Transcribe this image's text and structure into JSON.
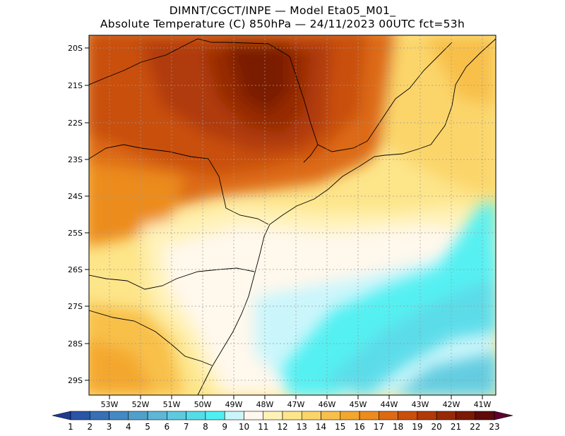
{
  "title": {
    "line1": "DIMNT/CGCT/INPE —  Model Eta05_M01_",
    "line2": "Absolute Temperature (C) 850hPa —  24/11/2023 00UTC fct=53h"
  },
  "map": {
    "lat_labels": [
      "20S",
      "21S",
      "22S",
      "23S",
      "24S",
      "25S",
      "26S",
      "27S",
      "28S",
      "29S"
    ],
    "lon_labels": [
      "53W",
      "52W",
      "51W",
      "50W",
      "49W",
      "48W",
      "47W",
      "46W",
      "45W",
      "44W",
      "43W",
      "42W",
      "41W"
    ]
  },
  "colorbar": {
    "labels": [
      "1",
      "2",
      "3",
      "4",
      "5",
      "6",
      "7",
      "8",
      "9",
      "10",
      "11",
      "12",
      "13",
      "14",
      "15",
      "16",
      "17",
      "18",
      "19",
      "20",
      "21",
      "22",
      "23"
    ],
    "colors": [
      "#1f3a93",
      "#2a55a5",
      "#3770b5",
      "#4489c2",
      "#51a0cc",
      "#5fb6d6",
      "#5dcadf",
      "#56dbe8",
      "#4ff0f2",
      "#caf6fb",
      "#fff8ec",
      "#fff2b8",
      "#fde58a",
      "#fbd56a",
      "#f8c04a",
      "#f4a72f",
      "#ec8c1e",
      "#dd6a12",
      "#c94f0c",
      "#b03a08",
      "#962a05",
      "#7a1a04",
      "#5e0a0a",
      "#5c0030"
    ]
  }
}
